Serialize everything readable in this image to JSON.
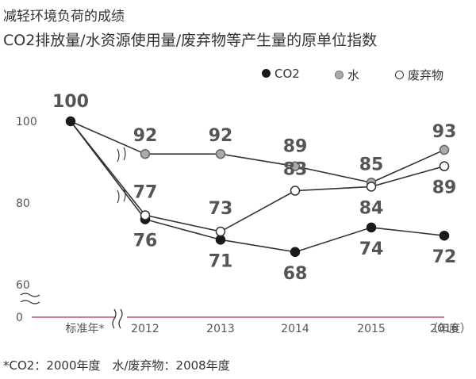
{
  "title": "减轻环境负荷的成绩",
  "subtitle": "CO2排放量/水资源使用量/废弃物等产生量的原单位指数",
  "legend": [
    {
      "label": "CO2",
      "marker": "filled-black"
    },
    {
      "label": "水",
      "marker": "filled-gray"
    },
    {
      "label": "废弃物",
      "marker": "hollow"
    }
  ],
  "footnote": "*CO2：2000年度　水/废弃物：2008年度",
  "colors": {
    "co2": "#1a1a1a",
    "water": "#aaaaaa",
    "waste": "#ffffff",
    "line": "#333333",
    "axis": "#b03050"
  },
  "chart_data": {
    "type": "line",
    "categories": [
      "标准年*",
      "2012",
      "2013",
      "2014",
      "2015",
      "2016"
    ],
    "x_unit_label": "（年度）",
    "yticks": [
      0,
      60,
      80,
      100
    ],
    "axis_break": true,
    "series": [
      {
        "name": "CO2",
        "values": [
          100,
          76,
          71,
          68,
          74,
          72
        ]
      },
      {
        "name": "水",
        "values": [
          100,
          92,
          92,
          89,
          85,
          93
        ]
      },
      {
        "name": "废弃物",
        "values": [
          100,
          77,
          73,
          83,
          84,
          89
        ]
      }
    ]
  }
}
